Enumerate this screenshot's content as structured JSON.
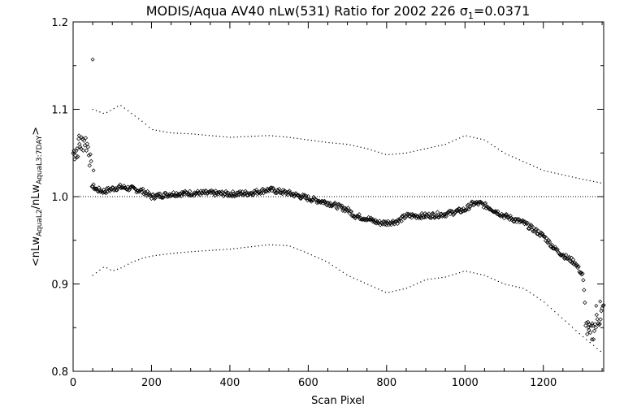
{
  "chart_data": {
    "type": "scatter",
    "title_main": "MODIS/Aqua AV40 nLw(531) Ratio for 2002 226 ",
    "title_sigma": "σ",
    "title_sigma_sub": "1",
    "title_value": "=0.0371",
    "xlabel": "Scan Pixel",
    "ylabel_parts": [
      "<nLw",
      "AquaL2",
      "/nLw",
      "AquaL3:7DAY",
      ">"
    ],
    "xlim": [
      0,
      1354
    ],
    "ylim": [
      0.8,
      1.2
    ],
    "x_ticks": [
      0,
      200,
      400,
      600,
      800,
      1000,
      1200
    ],
    "x_tick_labels": [
      "0",
      "200",
      "400",
      "600",
      "800",
      "1000",
      "1200"
    ],
    "y_ticks": [
      0.8,
      0.9,
      1.0,
      1.1,
      1.2
    ],
    "y_tick_labels": [
      "0.8",
      "0.9",
      "1.0",
      "1.1",
      "1.2"
    ],
    "reference_line": 1.0,
    "mean_ratio_knots": {
      "x": [
        0,
        10,
        20,
        30,
        40,
        50,
        60,
        80,
        100,
        120,
        150,
        180,
        200,
        250,
        300,
        350,
        400,
        450,
        500,
        550,
        600,
        650,
        700,
        720,
        750,
        780,
        800,
        830,
        850,
        900,
        950,
        980,
        1000,
        1020,
        1040,
        1060,
        1100,
        1150,
        1200,
        1230,
        1260,
        1280,
        1300,
        1310,
        1320,
        1340,
        1354
      ],
      "y": [
        1.05,
        1.055,
        1.06,
        1.065,
        1.055,
        1.012,
        1.008,
        1.006,
        1.009,
        1.011,
        1.009,
        1.006,
        1.0,
        1.003,
        1.004,
        1.004,
        1.003,
        1.004,
        1.008,
        1.004,
        0.998,
        0.993,
        0.985,
        0.978,
        0.975,
        0.97,
        0.97,
        0.972,
        0.978,
        0.978,
        0.98,
        0.983,
        0.985,
        0.992,
        0.992,
        0.988,
        0.978,
        0.97,
        0.955,
        0.94,
        0.93,
        0.925,
        0.91,
        0.85,
        0.84,
        0.86,
        0.87
      ]
    },
    "upper_band": {
      "x": [
        50,
        80,
        100,
        120,
        150,
        180,
        200,
        250,
        300,
        400,
        500,
        550,
        600,
        650,
        700,
        750,
        800,
        850,
        900,
        950,
        1000,
        1050,
        1100,
        1150,
        1200,
        1250,
        1300,
        1354
      ],
      "y": [
        1.1,
        1.095,
        1.1,
        1.105,
        1.095,
        1.085,
        1.077,
        1.073,
        1.072,
        1.068,
        1.07,
        1.068,
        1.065,
        1.062,
        1.06,
        1.055,
        1.048,
        1.05,
        1.055,
        1.06,
        1.07,
        1.065,
        1.05,
        1.04,
        1.03,
        1.025,
        1.02,
        1.015
      ]
    },
    "lower_band": {
      "x": [
        50,
        80,
        100,
        120,
        150,
        180,
        200,
        250,
        300,
        400,
        500,
        550,
        600,
        650,
        700,
        750,
        800,
        850,
        900,
        950,
        1000,
        1050,
        1100,
        1150,
        1200,
        1250,
        1300,
        1354
      ],
      "y": [
        0.91,
        0.92,
        0.915,
        0.918,
        0.925,
        0.93,
        0.932,
        0.935,
        0.937,
        0.94,
        0.945,
        0.944,
        0.935,
        0.925,
        0.91,
        0.9,
        0.89,
        0.895,
        0.905,
        0.908,
        0.915,
        0.91,
        0.9,
        0.895,
        0.88,
        0.86,
        0.84,
        0.82
      ]
    },
    "outliers": {
      "x": [
        50,
        52,
        10,
        15,
        1315,
        1325,
        1335,
        1345
      ],
      "y": [
        1.157,
        1.03,
        1.045,
        1.07,
        0.85,
        0.855,
        0.875,
        0.88
      ]
    }
  }
}
